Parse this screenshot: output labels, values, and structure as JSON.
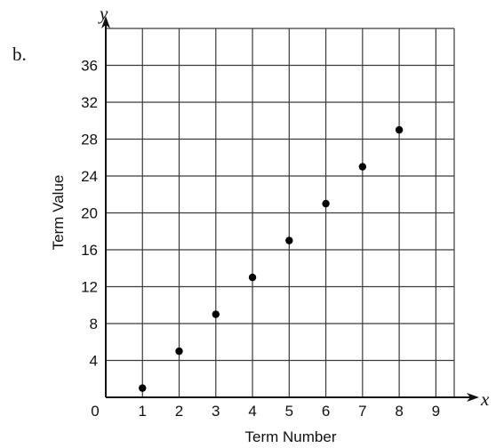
{
  "part_label": "b.",
  "chart_data": {
    "type": "scatter",
    "title": "",
    "xlabel": "Term Number",
    "ylabel": "Term Value",
    "x_axis_var": "x",
    "y_axis_var": "y",
    "origin_label": "0",
    "xlim": [
      0,
      9
    ],
    "ylim": [
      0,
      36
    ],
    "x_ticks": [
      1,
      2,
      3,
      4,
      5,
      6,
      7,
      8,
      9
    ],
    "x_tick_labels": [
      "1",
      "2",
      "3",
      "4",
      "5",
      "6",
      "7",
      "8",
      "9"
    ],
    "y_ticks": [
      4,
      8,
      12,
      16,
      20,
      24,
      28,
      32,
      36
    ],
    "y_tick_labels": [
      "4",
      "8",
      "12",
      "16",
      "20",
      "24",
      "28",
      "32",
      "36"
    ],
    "grid": true,
    "point_color": "#000000",
    "grid_color": "#3a3a3a",
    "x": [
      1,
      2,
      3,
      4,
      5,
      6,
      7,
      8
    ],
    "y": [
      1,
      5,
      9,
      13,
      17,
      21,
      25,
      29
    ]
  }
}
